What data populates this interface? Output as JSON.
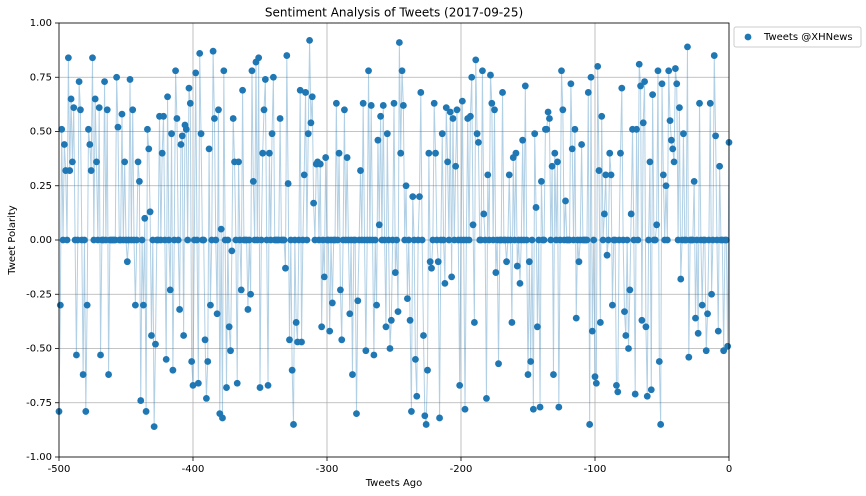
{
  "chart_data": {
    "type": "scatter-line",
    "title": "Sentiment Analysis of Tweets (2017-09-25)",
    "x_label": "Tweets Ago",
    "y_label": "Tweet Polarity",
    "grid": true,
    "legend": "outside",
    "xlim": [
      -500,
      0
    ],
    "xticks": [
      -500,
      -400,
      -300,
      -200,
      -100,
      0
    ],
    "ylim": [
      -1,
      1
    ],
    "yticks": [
      {
        "value": -1,
        "label": "-1.00"
      },
      {
        "value": -0.75,
        "label": "-0.75"
      },
      {
        "value": -0.5,
        "label": "-0.50"
      },
      {
        "value": -0.25,
        "label": "-0.25"
      },
      {
        "value": 0,
        "label": "0.00"
      },
      {
        "value": 0.25,
        "label": "0.25"
      },
      {
        "value": 0.5,
        "label": "0.50"
      },
      {
        "value": 0.75,
        "label": "0.75"
      },
      {
        "value": 1,
        "label": "1.00"
      }
    ],
    "x": [
      -500,
      -499,
      -498,
      -497,
      -496,
      -495,
      -494,
      -493,
      -492,
      -491,
      -490,
      -489,
      -488,
      -487,
      -486,
      -485,
      -484,
      -483,
      -482,
      -481,
      -480,
      -479,
      -478,
      -477,
      -476,
      -475,
      -474,
      -473,
      -472,
      -471,
      -470,
      -469,
      -468,
      -467,
      -466,
      -465,
      -464,
      -463,
      -462,
      -461,
      -460,
      -459,
      -458,
      -457,
      -456,
      -455,
      -454,
      -453,
      -452,
      -451,
      -450,
      -449,
      -448,
      -447,
      -446,
      -445,
      -444,
      -443,
      -442,
      -441,
      -440,
      -439,
      -438,
      -437,
      -436,
      -435,
      -434,
      -433,
      -432,
      -431,
      -430,
      -429,
      -428,
      -427,
      -426,
      -425,
      -424,
      -423,
      -422,
      -421,
      -420,
      -419,
      -418,
      -417,
      -416,
      -415,
      -414,
      -413,
      -412,
      -411,
      -410,
      -409,
      -408,
      -407,
      -406,
      -405,
      -404,
      -403,
      -402,
      -401,
      -400,
      -399,
      -398,
      -397,
      -396,
      -395,
      -394,
      -393,
      -392,
      -391,
      -390,
      -389,
      -388,
      -387,
      -386,
      -385,
      -384,
      -383,
      -382,
      -381,
      -380,
      -379,
      -378,
      -377,
      -376,
      -375,
      -374,
      -373,
      -372,
      -371,
      -370,
      -369,
      -368,
      -367,
      -366,
      -365,
      -364,
      -363,
      -362,
      -361,
      -360,
      -359,
      -358,
      -357,
      -356,
      -355,
      -354,
      -353,
      -352,
      -351,
      -350,
      -349,
      -348,
      -347,
      -346,
      -345,
      -344,
      -343,
      -342,
      -341,
      -340,
      -339,
      -338,
      -337,
      -336,
      -335,
      -334,
      -333,
      -332,
      -331,
      -330,
      -329,
      -328,
      -327,
      -326,
      -325,
      -324,
      -323,
      -322,
      -321,
      -320,
      -319,
      -318,
      -317,
      -316,
      -315,
      -314,
      -313,
      -312,
      -311,
      -310,
      -309,
      -308,
      -307,
      -306,
      -305,
      -304,
      -303,
      -302,
      -301,
      -300,
      -299,
      -298,
      -297,
      -296,
      -295,
      -294,
      -293,
      -292,
      -291,
      -290,
      -289,
      -288,
      -287,
      -286,
      -285,
      -284,
      -283,
      -282,
      -281,
      -280,
      -279,
      -278,
      -277,
      -276,
      -275,
      -274,
      -273,
      -272,
      -271,
      -270,
      -269,
      -268,
      -267,
      -266,
      -265,
      -264,
      -263,
      -262,
      -261,
      -260,
      -259,
      -258,
      -257,
      -256,
      -255,
      -254,
      -253,
      -252,
      -251,
      -250,
      -249,
      -248,
      -247,
      -246,
      -245,
      -244,
      -243,
      -242,
      -241,
      -240,
      -239,
      -238,
      -237,
      -236,
      -235,
      -234,
      -233,
      -232,
      -231,
      -230,
      -229,
      -228,
      -227,
      -226,
      -225,
      -224,
      -223,
      -222,
      -221,
      -220,
      -219,
      -218,
      -217,
      -216,
      -215,
      -214,
      -213,
      -212,
      -211,
      -210,
      -209,
      -208,
      -207,
      -206,
      -205,
      -204,
      -203,
      -202,
      -201,
      -200,
      -199,
      -198,
      -197,
      -196,
      -195,
      -194,
      -193,
      -192,
      -191,
      -190,
      -189,
      -188,
      -187,
      -186,
      -185,
      -184,
      -183,
      -182,
      -181,
      -180,
      -179,
      -178,
      -177,
      -176,
      -175,
      -174,
      -173,
      -172,
      -171,
      -170,
      -169,
      -168,
      -167,
      -166,
      -165,
      -164,
      -163,
      -162,
      -161,
      -160,
      -159,
      -158,
      -157,
      -156,
      -155,
      -154,
      -153,
      -152,
      -151,
      -150,
      -149,
      -148,
      -147,
      -146,
      -145,
      -144,
      -143,
      -142,
      -141,
      -140,
      -139,
      -138,
      -137,
      -136,
      -135,
      -134,
      -133,
      -132,
      -131,
      -130,
      -129,
      -128,
      -127,
      -126,
      -125,
      -124,
      -123,
      -122,
      -121,
      -120,
      -119,
      -118,
      -117,
      -116,
      -115,
      -114,
      -113,
      -112,
      -111,
      -110,
      -109,
      -108,
      -107,
      -106,
      -105,
      -104,
      -103,
      -102,
      -101,
      -100,
      -99,
      -98,
      -97,
      -96,
      -95,
      -94,
      -93,
      -92,
      -91,
      -90,
      -89,
      -88,
      -87,
      -86,
      -85,
      -84,
      -83,
      -82,
      -81,
      -80,
      -79,
      -78,
      -77,
      -76,
      -75,
      -74,
      -73,
      -72,
      -71,
      -70,
      -69,
      -68,
      -67,
      -66,
      -65,
      -64,
      -63,
      -62,
      -61,
      -60,
      -59,
      -58,
      -57,
      -56,
      -55,
      -54,
      -53,
      -52,
      -51,
      -50,
      -49,
      -48,
      -47,
      -46,
      -45,
      -44,
      -43,
      -42,
      -41,
      -40,
      -39,
      -38,
      -37,
      -36,
      -35,
      -34,
      -33,
      -32,
      -31,
      -30,
      -29,
      -28,
      -27,
      -26,
      -25,
      -24,
      -23,
      -22,
      -21,
      -20,
      -19,
      -18,
      -17,
      -16,
      -15,
      -14,
      -13,
      -12,
      -11,
      -10,
      -9,
      -8,
      -7,
      -6,
      -5,
      -4,
      -3,
      -2,
      -1,
      0
    ],
    "series": [
      {
        "name": "Tweets @XHNews",
        "color": "#1f77b4",
        "values": [
          -0.79,
          -0.3,
          0.51,
          0,
          0.44,
          0.32,
          0,
          0.84,
          0.32,
          0.65,
          0.36,
          0.61,
          0,
          -0.53,
          0,
          0.73,
          0.6,
          0,
          -0.62,
          0,
          -0.79,
          -0.3,
          0.51,
          0.44,
          0.32,
          0.84,
          0,
          0.65,
          0.36,
          0,
          0.61,
          -0.53,
          0,
          0,
          0.73,
          0,
          0.6,
          -0.62,
          0,
          0,
          0,
          0,
          0,
          0.75,
          0.52,
          0,
          0,
          0.58,
          0,
          0.36,
          0,
          -0.1,
          0,
          0.74,
          0,
          0.6,
          0,
          -0.3,
          0,
          0.36,
          0.27,
          -0.74,
          0,
          -0.3,
          0.1,
          -0.79,
          0.51,
          0.42,
          0.13,
          -0.44,
          0,
          -0.86,
          -0.48,
          0,
          0,
          0.57,
          0,
          0.4,
          0.57,
          0,
          -0.55,
          0.66,
          0,
          -0.23,
          0.49,
          -0.6,
          0,
          0.78,
          0.56,
          0,
          -0.32,
          0.44,
          0.48,
          -0.44,
          0.53,
          0.51,
          0,
          0.7,
          0.63,
          -0.56,
          -0.67,
          0,
          0.77,
          0,
          -0.66,
          0.86,
          0.49,
          0,
          0,
          -0.46,
          -0.73,
          -0.56,
          0.42,
          -0.3,
          0,
          0.87,
          0.56,
          0,
          -0.34,
          0.6,
          -0.8,
          0.05,
          -0.82,
          0.78,
          0,
          -0.68,
          0,
          -0.4,
          -0.51,
          -0.05,
          0.56,
          0.36,
          0,
          -0.66,
          0.36,
          0,
          -0.23,
          0.69,
          0,
          0,
          0,
          -0.32,
          0,
          -0.25,
          0.78,
          0.27,
          0,
          0.82,
          0,
          0.84,
          -0.68,
          0,
          0.4,
          0.6,
          0.74,
          0,
          -0.67,
          0.4,
          0,
          0.49,
          0.75,
          0,
          0,
          0,
          0,
          0.56,
          0,
          0,
          0,
          -0.13,
          0.85,
          0.26,
          -0.46,
          0,
          -0.6,
          -0.85,
          0,
          -0.38,
          -0.47,
          0,
          0.69,
          -0.47,
          0,
          0.3,
          0.68,
          0,
          0.49,
          0.92,
          0.54,
          0.66,
          0.17,
          0,
          0.35,
          0.36,
          0,
          0.35,
          -0.4,
          0,
          -0.17,
          0.38,
          0,
          0,
          -0.42,
          0,
          -0.29,
          0,
          0,
          0.63,
          0,
          0.4,
          -0.23,
          -0.46,
          0,
          0.6,
          0,
          0.38,
          0,
          -0.34,
          0,
          -0.62,
          0,
          0,
          -0.8,
          -0.28,
          0,
          0.32,
          0,
          0.63,
          0,
          -0.51,
          0,
          0.78,
          0,
          0.62,
          0,
          -0.53,
          0,
          -0.3,
          0.46,
          0.07,
          0.57,
          0,
          0.62,
          0,
          -0.4,
          0.49,
          0,
          -0.5,
          -0.37,
          0,
          0.63,
          -0.15,
          0,
          -0.33,
          0.91,
          0.4,
          0.78,
          0.62,
          0,
          0.25,
          -0.27,
          0,
          -0.37,
          -0.79,
          0.2,
          0,
          -0.55,
          -0.72,
          0,
          0.2,
          0.68,
          0,
          -0.44,
          -0.81,
          -0.85,
          -0.6,
          0.4,
          -0.1,
          -0.13,
          0,
          0.63,
          0.4,
          0,
          -0.1,
          -0.82,
          0,
          0.49,
          0,
          -0.2,
          0.61,
          0.36,
          0,
          0.59,
          -0.17,
          0.56,
          0,
          0.34,
          0.6,
          0,
          -0.67,
          0,
          0.64,
          0,
          -0.78,
          0,
          0.56,
          0,
          0.57,
          0.75,
          0.07,
          -0.38,
          0.83,
          0.49,
          0.45,
          0,
          0,
          0.78,
          0.12,
          0,
          -0.73,
          0.3,
          0,
          0.76,
          0.63,
          0,
          0.6,
          -0.15,
          0,
          -0.57,
          0,
          0,
          0.68,
          0,
          0,
          -0.1,
          0,
          0.3,
          0,
          -0.38,
          0.38,
          0,
          0.4,
          -0.12,
          0,
          -0.2,
          0,
          0.46,
          0,
          0.71,
          0,
          -0.62,
          -0.1,
          -0.56,
          0,
          -0.78,
          0.49,
          0.15,
          -0.4,
          0,
          -0.77,
          0.27,
          0,
          0,
          0.51,
          0.51,
          0.59,
          0.56,
          0,
          0.34,
          -0.62,
          0.4,
          0,
          0.36,
          -0.77,
          0,
          0.78,
          0.6,
          0,
          0.18,
          0,
          0,
          0,
          0.72,
          0.42,
          0,
          0.51,
          -0.36,
          0,
          -0.1,
          0,
          0.44,
          0,
          0,
          0,
          0,
          0.68,
          -0.85,
          0.75,
          -0.42,
          0,
          -0.63,
          -0.66,
          0.8,
          0.32,
          -0.38,
          0.57,
          0,
          0.12,
          0.3,
          -0.07,
          0,
          0.4,
          0.3,
          -0.3,
          0,
          0,
          -0.67,
          -0.7,
          0,
          0.4,
          0.7,
          0,
          -0.33,
          -0.44,
          0,
          -0.5,
          -0.23,
          0.12,
          0.51,
          0,
          -0.71,
          0.51,
          0,
          0.81,
          0.71,
          -0.37,
          0.54,
          0.73,
          -0.4,
          -0.72,
          0,
          0.36,
          -0.69,
          0.67,
          0,
          0,
          0.07,
          0.78,
          -0.56,
          -0.85,
          0.72,
          0.3,
          0,
          0.25,
          0,
          0.78,
          0.55,
          0.46,
          0.42,
          0.36,
          0.79,
          0.72,
          0,
          0.61,
          -0.18,
          0,
          0.49,
          0,
          0,
          0.89,
          -0.54,
          0,
          0,
          0,
          0.27,
          -0.36,
          0,
          -0.43,
          0.63,
          0,
          -0.3,
          0,
          0,
          -0.51,
          -0.34,
          0,
          0.63,
          -0.25,
          0,
          0.85,
          0.48,
          0,
          -0.42,
          0.34,
          0,
          0,
          -0.51,
          0,
          0,
          -0.49,
          0.45
        ]
      }
    ]
  }
}
